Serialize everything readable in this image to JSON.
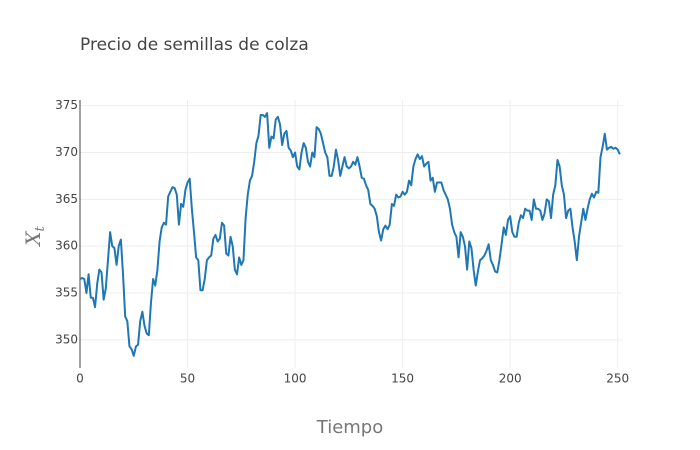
{
  "chart_data": {
    "type": "line",
    "title": "Precio de semillas de colza",
    "x_label": "Tiempo",
    "y_label": "X",
    "y_label_subscript": "t",
    "color": "#1f77b4",
    "grid": true,
    "xlim": [
      0,
      252
    ],
    "xticks": [
      0,
      50,
      100,
      150,
      200,
      250
    ],
    "ylim": [
      347,
      375.6
    ],
    "yticks": [
      350,
      355,
      360,
      365,
      370,
      375
    ],
    "x": [
      0,
      1,
      2,
      3,
      4,
      5,
      6,
      7,
      8,
      9,
      10,
      11,
      12,
      13,
      14,
      15,
      16,
      17,
      18,
      19,
      20,
      21,
      22,
      23,
      24,
      25,
      26,
      27,
      28,
      29,
      30,
      31,
      32,
      33,
      34,
      35,
      36,
      37,
      38,
      39,
      40,
      41,
      42,
      43,
      44,
      45,
      46,
      47,
      48,
      49,
      50,
      51,
      52,
      53,
      54,
      55,
      56,
      57,
      58,
      59,
      60,
      61,
      62,
      63,
      64,
      65,
      66,
      67,
      68,
      69,
      70,
      71,
      72,
      73,
      74,
      75,
      76,
      77,
      78,
      79,
      80,
      81,
      82,
      83,
      84,
      85,
      86,
      87,
      88,
      89,
      90,
      91,
      92,
      93,
      94,
      95,
      96,
      97,
      98,
      99,
      100,
      101,
      102,
      103,
      104,
      105,
      106,
      107,
      108,
      109,
      110,
      111,
      112,
      113,
      114,
      115,
      116,
      117,
      118,
      119,
      120,
      121,
      122,
      123,
      124,
      125,
      126,
      127,
      128,
      129,
      130,
      131,
      132,
      133,
      134,
      135,
      136,
      137,
      138,
      139,
      140,
      141,
      142,
      143,
      144,
      145,
      146,
      147,
      148,
      149,
      150,
      151,
      152,
      153,
      154,
      155,
      156,
      157,
      158,
      159,
      160,
      161,
      162,
      163,
      164,
      165,
      166,
      167,
      168,
      169,
      170,
      171,
      172,
      173,
      174,
      175,
      176,
      177,
      178,
      179,
      180,
      181,
      182,
      183,
      184,
      185,
      186,
      187,
      188,
      189,
      190,
      191,
      192,
      193,
      194,
      195,
      196,
      197,
      198,
      199,
      200,
      201,
      202,
      203,
      204,
      205,
      206,
      207,
      208,
      209,
      210,
      211,
      212,
      213,
      214,
      215,
      216,
      217,
      218,
      219,
      220,
      221,
      222,
      223,
      224,
      225,
      226,
      227,
      228,
      229,
      230,
      231,
      232,
      233,
      234,
      235,
      236,
      237,
      238,
      239,
      240,
      241,
      242,
      243,
      244,
      245,
      246,
      247,
      248,
      249,
      250,
      251
    ],
    "values": [
      356.5,
      356.6,
      356.5,
      355,
      357,
      354.5,
      354.5,
      353.5,
      356,
      357.5,
      357.2,
      354.3,
      355.5,
      358.5,
      361.5,
      360,
      359.8,
      358,
      360,
      360.7,
      357,
      352.5,
      352,
      349.3,
      349,
      348.3,
      349.3,
      349.5,
      352,
      353,
      351.5,
      350.7,
      350.5,
      354,
      356.5,
      355.8,
      357.5,
      360.5,
      362,
      362.5,
      362.3,
      365.3,
      365.8,
      366.3,
      366.2,
      365.5,
      362.3,
      364.5,
      364.2,
      366,
      366.8,
      367.2,
      364,
      361.5,
      358.8,
      358.5,
      355.3,
      355.3,
      356.5,
      358.5,
      358.8,
      359,
      360.8,
      361.2,
      360.5,
      360.8,
      362.5,
      362.2,
      359.2,
      359,
      361,
      360,
      357.5,
      357,
      358.8,
      358,
      358.5,
      363,
      365.5,
      367,
      367.5,
      369,
      371,
      371.8,
      374,
      374,
      373.8,
      374.2,
      370.5,
      371.7,
      371.5,
      373.5,
      373.8,
      373,
      370.8,
      372,
      372.3,
      370.5,
      370.2,
      369.5,
      370,
      368.5,
      368.2,
      370,
      371,
      370.5,
      369,
      368.5,
      370,
      369.5,
      372.7,
      372.5,
      372,
      371,
      370,
      369.5,
      367.5,
      367.5,
      368.5,
      370.3,
      369.2,
      367.5,
      368.5,
      369.5,
      368.5,
      368.3,
      368.5,
      369,
      368.7,
      369.5,
      368.5,
      367.3,
      367.2,
      366.5,
      366,
      364.5,
      364.3,
      364,
      363.2,
      361.5,
      360.6,
      361.8,
      362.2,
      361.8,
      362.3,
      364.5,
      364.3,
      365.5,
      365.2,
      365.3,
      365.8,
      365.5,
      365.8,
      367,
      366.5,
      368.5,
      369.3,
      369.8,
      369.3,
      369.6,
      368.5,
      368.8,
      369,
      367,
      367.3,
      365.8,
      366.8,
      366.8,
      366.8,
      366,
      365.5,
      365,
      364,
      362.3,
      361.5,
      361,
      358.8,
      361.5,
      361,
      360,
      357.5,
      360.5,
      359.8,
      357.5,
      355.8,
      357.3,
      358.5,
      358.7,
      359,
      359.5,
      360.2,
      358.5,
      358,
      357.3,
      357.2,
      358.5,
      360.2,
      362,
      361.2,
      362.8,
      363.2,
      361.5,
      361,
      361,
      362.5,
      363.3,
      363,
      364,
      363.8,
      363.8,
      362.8,
      365,
      364,
      364,
      363.8,
      362.8,
      363.5,
      365,
      364.8,
      363,
      365.5,
      366.5,
      369.2,
      368.5,
      366.5,
      365.5,
      363,
      363.8,
      364,
      362,
      360.5,
      358.5,
      361,
      362.5,
      364,
      362.8,
      364,
      365,
      365.6,
      365.2,
      365.8,
      365.7,
      369.5,
      370.6,
      372,
      370.3,
      370.5,
      370.6,
      370.4,
      370.5,
      370.3,
      369.8
    ]
  }
}
